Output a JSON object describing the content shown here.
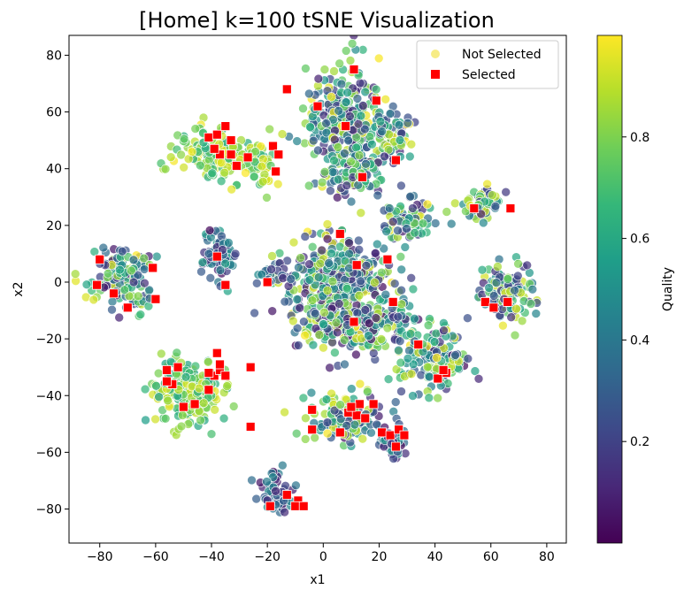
{
  "chart_data": {
    "type": "scatter",
    "title": "[Home] k=100 tSNE Visualization",
    "xlabel": "x1",
    "ylabel": "x2",
    "xlim": [
      -91,
      87
    ],
    "ylim": [
      -92,
      87
    ],
    "xticks": [
      -80,
      -60,
      -40,
      -20,
      0,
      20,
      40,
      60,
      80
    ],
    "yticks": [
      -80,
      -60,
      -40,
      -20,
      0,
      20,
      40,
      60,
      80
    ],
    "legend": {
      "placement": "top-right",
      "entries": [
        {
          "label": "Not Selected",
          "marker": "circle",
          "color": "#f4e55c"
        },
        {
          "label": "Selected",
          "marker": "square",
          "color": "#ff0000"
        }
      ]
    },
    "colorbar": {
      "label": "Quality",
      "range": [
        0.0,
        1.0
      ],
      "ticks": [
        0.2,
        0.4,
        0.6,
        0.8
      ],
      "colormap": "viridis"
    },
    "colormap_stops": [
      "#440154",
      "#482878",
      "#3e4989",
      "#31688e",
      "#26828e",
      "#1f9e89",
      "#35b779",
      "#6ece58",
      "#b5de2b",
      "#fde725"
    ],
    "clusters_not_selected": [
      {
        "cx": 8,
        "cy": 58,
        "rx": 14,
        "ry": 20,
        "n": 260,
        "qmin": 0.05,
        "qmax": 1.0
      },
      {
        "cx": 25,
        "cy": 52,
        "rx": 8,
        "ry": 9,
        "n": 70,
        "qmin": 0.05,
        "qmax": 1.0
      },
      {
        "cx": 10,
        "cy": 38,
        "rx": 12,
        "ry": 7,
        "n": 90,
        "qmin": 0.05,
        "qmax": 1.0
      },
      {
        "cx": 30,
        "cy": 22,
        "rx": 10,
        "ry": 8,
        "n": 70,
        "qmin": 0.05,
        "qmax": 1.0
      },
      {
        "cx": -38,
        "cy": 45,
        "rx": 15,
        "ry": 9,
        "n": 150,
        "qmin": 0.6,
        "qmax": 1.0
      },
      {
        "cx": -22,
        "cy": 40,
        "rx": 5,
        "ry": 8,
        "n": 30,
        "qmin": 0.6,
        "qmax": 1.0
      },
      {
        "cx": -37,
        "cy": 10,
        "rx": 6,
        "ry": 10,
        "n": 70,
        "qmin": 0.02,
        "qmax": 0.6
      },
      {
        "cx": -72,
        "cy": 2,
        "rx": 12,
        "ry": 11,
        "n": 150,
        "qmin": 0.02,
        "qmax": 1.0
      },
      {
        "cx": 5,
        "cy": 2,
        "rx": 20,
        "ry": 14,
        "n": 320,
        "qmin": 0.02,
        "qmax": 1.0
      },
      {
        "cx": 12,
        "cy": -15,
        "rx": 22,
        "ry": 10,
        "n": 230,
        "qmin": 0.02,
        "qmax": 1.0
      },
      {
        "cx": 40,
        "cy": -28,
        "rx": 13,
        "ry": 11,
        "n": 150,
        "qmin": 0.02,
        "qmax": 1.0
      },
      {
        "cx": -48,
        "cy": -38,
        "rx": 14,
        "ry": 12,
        "n": 210,
        "qmin": 0.55,
        "qmax": 1.0
      },
      {
        "cx": 7,
        "cy": -48,
        "rx": 13,
        "ry": 9,
        "n": 130,
        "qmin": 0.05,
        "qmax": 1.0
      },
      {
        "cx": 24,
        "cy": -56,
        "rx": 6,
        "ry": 5,
        "n": 40,
        "qmin": 0.02,
        "qmax": 0.6
      },
      {
        "cx": 57,
        "cy": 27,
        "rx": 8,
        "ry": 5,
        "n": 50,
        "qmin": 0.05,
        "qmax": 1.0
      },
      {
        "cx": 66,
        "cy": -4,
        "rx": 10,
        "ry": 12,
        "n": 120,
        "qmin": 0.1,
        "qmax": 1.0
      },
      {
        "cx": -17,
        "cy": -74,
        "rx": 6,
        "ry": 9,
        "n": 50,
        "qmin": 0.02,
        "qmax": 0.5
      },
      {
        "cx": -18,
        "cy": 2,
        "rx": 5,
        "ry": 4,
        "n": 20,
        "qmin": 0.02,
        "qmax": 0.5
      }
    ],
    "selected_points": [
      [
        11,
        75
      ],
      [
        -13,
        68
      ],
      [
        -2,
        62
      ],
      [
        19,
        64
      ],
      [
        8,
        55
      ],
      [
        14,
        37
      ],
      [
        26,
        43
      ],
      [
        -18,
        48
      ],
      [
        -16,
        45
      ],
      [
        -17,
        39
      ],
      [
        -41,
        51
      ],
      [
        -38,
        52
      ],
      [
        -35,
        55
      ],
      [
        -33,
        50
      ],
      [
        -37,
        45
      ],
      [
        -39,
        47
      ],
      [
        -33,
        45
      ],
      [
        -31,
        41
      ],
      [
        -27,
        44
      ],
      [
        -80,
        8
      ],
      [
        -81,
        -1
      ],
      [
        -75,
        -4
      ],
      [
        -70,
        -9
      ],
      [
        -61,
        5
      ],
      [
        -60,
        -6
      ],
      [
        -38,
        9
      ],
      [
        -35,
        -1
      ],
      [
        -20,
        0
      ],
      [
        6,
        17
      ],
      [
        12,
        6
      ],
      [
        23,
        8
      ],
      [
        25,
        -7
      ],
      [
        11,
        -14
      ],
      [
        34,
        -22
      ],
      [
        44,
        -32
      ],
      [
        41,
        -34
      ],
      [
        43,
        -31
      ],
      [
        -56,
        -31
      ],
      [
        -52,
        -30
      ],
      [
        -54,
        -36
      ],
      [
        -50,
        -44
      ],
      [
        -46,
        -43
      ],
      [
        -41,
        -38
      ],
      [
        -39,
        -33
      ],
      [
        -37,
        -31
      ],
      [
        -38,
        -25
      ],
      [
        -37,
        -29
      ],
      [
        -35,
        -33
      ],
      [
        -26,
        -30
      ],
      [
        -41,
        -32
      ],
      [
        -26,
        -51
      ],
      [
        -56,
        -35
      ],
      [
        -4,
        -45
      ],
      [
        -4,
        -52
      ],
      [
        6,
        -53
      ],
      [
        9,
        -46
      ],
      [
        12,
        -47
      ],
      [
        13,
        -43
      ],
      [
        10,
        -44
      ],
      [
        18,
        -43
      ],
      [
        15,
        -48
      ],
      [
        21,
        -53
      ],
      [
        24,
        -54
      ],
      [
        27,
        -52
      ],
      [
        26,
        -58
      ],
      [
        29,
        -54
      ],
      [
        54,
        26
      ],
      [
        58,
        -7
      ],
      [
        61,
        -9
      ],
      [
        66,
        -7
      ],
      [
        67,
        26
      ],
      [
        -19,
        -79
      ],
      [
        -13,
        -75
      ],
      [
        -9,
        -77
      ],
      [
        -10,
        -79
      ],
      [
        -7,
        -79
      ]
    ]
  }
}
